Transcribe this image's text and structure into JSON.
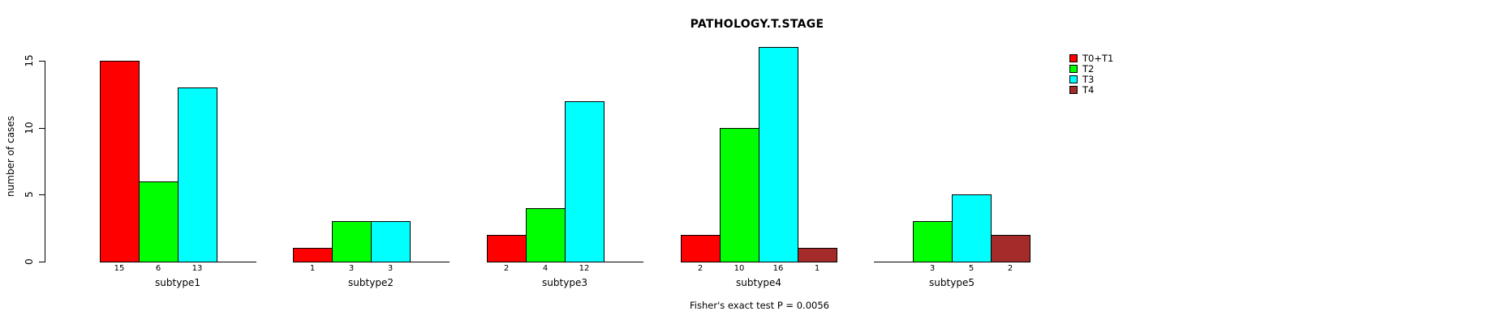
{
  "title": "PATHOLOGY.T.STAGE",
  "annotation": "Fisher's exact test P = 0.0056",
  "chart_data": {
    "type": "bar",
    "title": "PATHOLOGY.T.STAGE",
    "xlabel": "",
    "ylabel": "number of cases",
    "ylim": [
      0,
      15
    ],
    "yticks": [
      0,
      5,
      10,
      15
    ],
    "grid": false,
    "bar_value_labels_shown": true,
    "legend_position": "top-right",
    "series": [
      {
        "name": "T0+T1",
        "color": "#FF0000"
      },
      {
        "name": "T2",
        "color": "#00FF00"
      },
      {
        "name": "T3",
        "color": "#00FFFF"
      },
      {
        "name": "T4",
        "color": "#A52A2A"
      }
    ],
    "categories": [
      "subtype1",
      "subtype2",
      "subtype3",
      "subtype4",
      "subtype5"
    ],
    "groups": [
      {
        "label": "subtype1",
        "values": [
          15,
          6,
          13,
          0
        ]
      },
      {
        "label": "subtype2",
        "values": [
          1,
          3,
          3,
          0
        ]
      },
      {
        "label": "subtype3",
        "values": [
          2,
          4,
          12,
          0
        ]
      },
      {
        "label": "subtype4",
        "values": [
          2,
          10,
          16,
          1
        ]
      },
      {
        "label": "subtype5",
        "values": [
          0,
          3,
          5,
          2
        ]
      }
    ],
    "annotation": "Fisher's exact test P = 0.0056"
  }
}
